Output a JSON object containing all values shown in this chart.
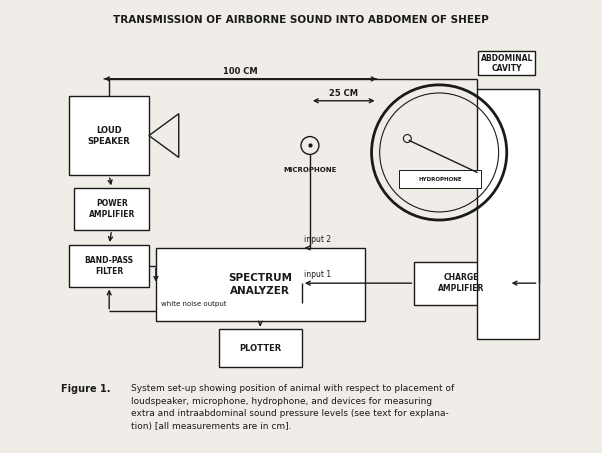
{
  "title": "TRANSMISSION OF AIRBORNE SOUND INTO ABDOMEN OF SHEEP",
  "title_fontsize": 7.5,
  "line_color": "#1a1a1a",
  "fig_width": 6.02,
  "fig_height": 4.53,
  "dpi": 100,
  "caption_bold": "Figure 1.",
  "caption_text": "System set-up showing position of animal with respect to placement of\nloudspeaker, microphone, hydrophone, and devices for measuring\nextra and intraabdominal sound pressure levels (see text for explana-\ntion) [all measurements are in cm].",
  "abdominal_cavity_label": "ABDOMINAL\nCAVITY",
  "hydrophone_label": "HYDROPHONE",
  "microphone_label": "MICROPHONE",
  "dist_100cm": "100 CM",
  "dist_25cm": "25 CM",
  "input1_label": "input 1",
  "input2_label": "input 2",
  "white_noise_label": "white noise output",
  "loud_speaker_label": "LOUD\nSPEAKER",
  "power_amp_label": "POWER\nAMPLIFIER",
  "bandpass_label": "BAND-PASS\nFILTER",
  "spectrum_label": "SPECTRUM\nANALYZER",
  "charge_amp_label": "CHARGE\nAMPLIFIER",
  "plotter_label": "PLOTTER",
  "bg_color": "#f0ede8"
}
